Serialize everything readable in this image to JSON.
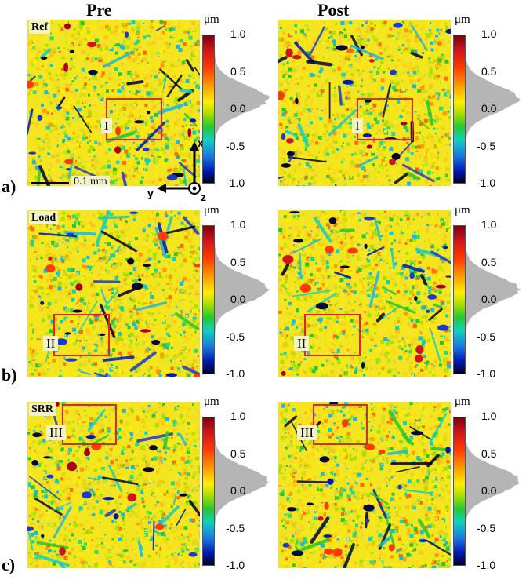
{
  "columns": {
    "pre": "Pre",
    "post": "Post"
  },
  "rows": [
    {
      "letter": "a)",
      "tag": "Ref",
      "roi": "I"
    },
    {
      "letter": "b)",
      "tag": "Load",
      "roi": "II"
    },
    {
      "letter": "c)",
      "tag": "SRR",
      "roi": "III"
    }
  ],
  "colorbar": {
    "unit": "μm",
    "ticks": [
      "1.0",
      "0.5",
      "0.0",
      "-0.5",
      "-1.0"
    ],
    "colors": [
      "#7a0010",
      "#ff3b00",
      "#ffee00",
      "#26c830",
      "#1a78e0",
      "#000020"
    ]
  },
  "scale_bar": "0.1 mm",
  "axes": {
    "x": "x",
    "y": "y",
    "z": "z"
  }
}
